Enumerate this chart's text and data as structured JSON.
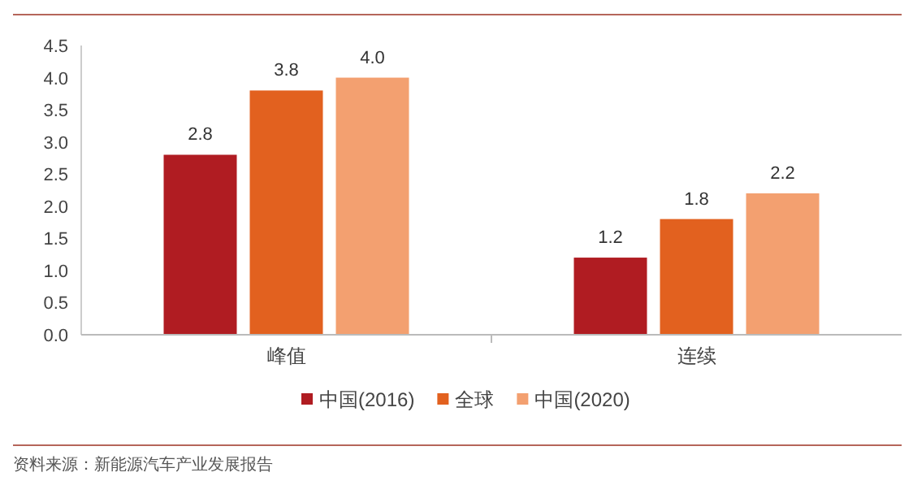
{
  "chart_data": {
    "type": "bar",
    "categories": [
      "峰值",
      "连续"
    ],
    "series": [
      {
        "name": "中国(2016)",
        "color": "#b01c22",
        "values": [
          2.8,
          1.2
        ],
        "value_labels": [
          "2.8",
          "1.2"
        ]
      },
      {
        "name": "全球",
        "color": "#e2611f",
        "values": [
          3.8,
          1.8
        ],
        "value_labels": [
          "3.8",
          "1.8"
        ]
      },
      {
        "name": "中国(2020)",
        "color": "#f3a070",
        "values": [
          4.0,
          2.2
        ],
        "value_labels": [
          "4.0",
          "2.2"
        ]
      }
    ],
    "ylim": [
      0,
      4.5
    ],
    "yticks": [
      "0.0",
      "0.5",
      "1.0",
      "1.5",
      "2.0",
      "2.5",
      "3.0",
      "3.5",
      "4.0",
      "4.5"
    ],
    "legend": "bottom",
    "grid": false,
    "annotations": [
      "资料来源：新能源汽车产业发展报告"
    ]
  }
}
